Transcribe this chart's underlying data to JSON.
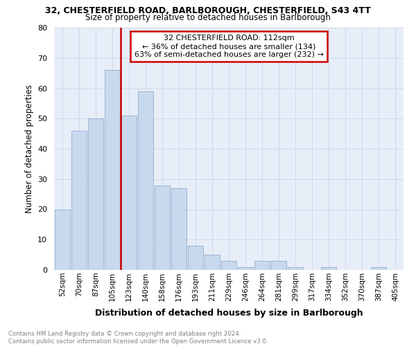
{
  "title1": "32, CHESTERFIELD ROAD, BARLBOROUGH, CHESTERFIELD, S43 4TT",
  "title2": "Size of property relative to detached houses in Barlborough",
  "xlabel": "Distribution of detached houses by size in Barlborough",
  "ylabel": "Number of detached properties",
  "footnote": "Contains HM Land Registry data © Crown copyright and database right 2024.\nContains public sector information licensed under the Open Government Licence v3.0.",
  "categories": [
    "52sqm",
    "70sqm",
    "87sqm",
    "105sqm",
    "123sqm",
    "140sqm",
    "158sqm",
    "176sqm",
    "193sqm",
    "211sqm",
    "229sqm",
    "246sqm",
    "264sqm",
    "281sqm",
    "299sqm",
    "317sqm",
    "334sqm",
    "352sqm",
    "370sqm",
    "387sqm",
    "405sqm"
  ],
  "values": [
    20,
    46,
    50,
    66,
    51,
    59,
    28,
    27,
    8,
    5,
    3,
    1,
    3,
    3,
    1,
    0,
    1,
    0,
    0,
    1,
    0
  ],
  "bar_color": "#c9d9ed",
  "bar_edge_color": "#a0b8d8",
  "vline_color": "#cc0000",
  "annotation_text": "32 CHESTERFIELD ROAD: 112sqm\n← 36% of detached houses are smaller (134)\n63% of semi-detached houses are larger (232) →",
  "annotation_box_color": "#cc0000",
  "ylim": [
    0,
    80
  ],
  "yticks": [
    0,
    10,
    20,
    30,
    40,
    50,
    60,
    70,
    80
  ],
  "grid_color": "#d0d8e8",
  "bg_color": "#e8eef8"
}
